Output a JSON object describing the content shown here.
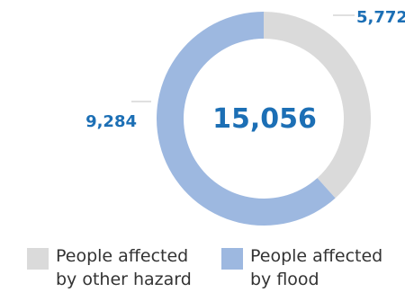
{
  "chart_data": {
    "type": "pie",
    "total": "15,056",
    "slices": [
      {
        "name": "People affected by other hazard",
        "value": 5772,
        "value_label": "5,772",
        "color": "#dadada"
      },
      {
        "name": "People affected by flood",
        "value": 9284,
        "value_label": "9,284",
        "color": "#9db8e0"
      }
    ],
    "legend": [
      {
        "label": "People affected\nby other hazard",
        "color": "#dadada"
      },
      {
        "label": "People affected\nby flood",
        "color": "#9db8e0"
      }
    ],
    "accent_color": "#1c6fb5"
  }
}
